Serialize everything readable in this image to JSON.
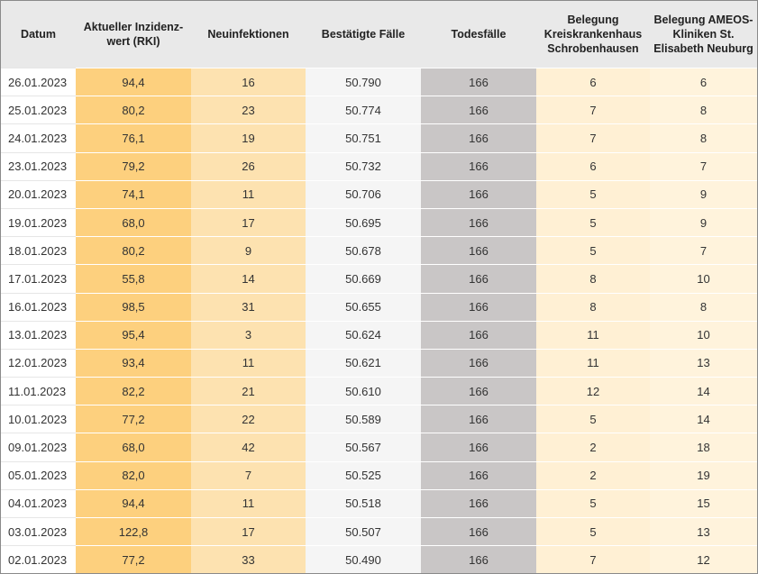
{
  "table": {
    "header": [
      "Datum",
      "Aktueller Inzidenz-wert (RKI)",
      "Neuinfektionen",
      "Bestätigte Fälle",
      "Todesfälle",
      "Belegung Kreiskrankenhaus Schrobenhausen",
      "Belegung AMEOS-Kliniken St. Elisabeth Neuburg"
    ],
    "rows": [
      [
        "26.01.2023",
        "94,4",
        "16",
        "50.790",
        "166",
        "6",
        "6"
      ],
      [
        "25.01.2023",
        "80,2",
        "23",
        "50.774",
        "166",
        "7",
        "8"
      ],
      [
        "24.01.2023",
        "76,1",
        "19",
        "50.751",
        "166",
        "7",
        "8"
      ],
      [
        "23.01.2023",
        "79,2",
        "26",
        "50.732",
        "166",
        "6",
        "7"
      ],
      [
        "20.01.2023",
        "74,1",
        "11",
        "50.706",
        "166",
        "5",
        "9"
      ],
      [
        "19.01.2023",
        "68,0",
        "17",
        "50.695",
        "166",
        "5",
        "9"
      ],
      [
        "18.01.2023",
        "80,2",
        "9",
        "50.678",
        "166",
        "5",
        "7"
      ],
      [
        "17.01.2023",
        "55,8",
        "14",
        "50.669",
        "166",
        "8",
        "10"
      ],
      [
        "16.01.2023",
        "98,5",
        "31",
        "50.655",
        "166",
        "8",
        "8"
      ],
      [
        "13.01.2023",
        "95,4",
        "3",
        "50.624",
        "166",
        "11",
        "10"
      ],
      [
        "12.01.2023",
        "93,4",
        "11",
        "50.621",
        "166",
        "11",
        "13"
      ],
      [
        "11.01.2023",
        "82,2",
        "21",
        "50.610",
        "166",
        "12",
        "14"
      ],
      [
        "10.01.2023",
        "77,2",
        "22",
        "50.589",
        "166",
        "5",
        "14"
      ],
      [
        "09.01.2023",
        "68,0",
        "42",
        "50.567",
        "166",
        "2",
        "18"
      ],
      [
        "05.01.2023",
        "82,0",
        "7",
        "50.525",
        "166",
        "2",
        "19"
      ],
      [
        "04.01.2023",
        "94,4",
        "11",
        "50.518",
        "166",
        "5",
        "15"
      ],
      [
        "03.01.2023",
        "122,8",
        "17",
        "50.507",
        "166",
        "5",
        "13"
      ],
      [
        "02.01.2023",
        "77,2",
        "33",
        "50.490",
        "166",
        "7",
        "12"
      ]
    ]
  }
}
